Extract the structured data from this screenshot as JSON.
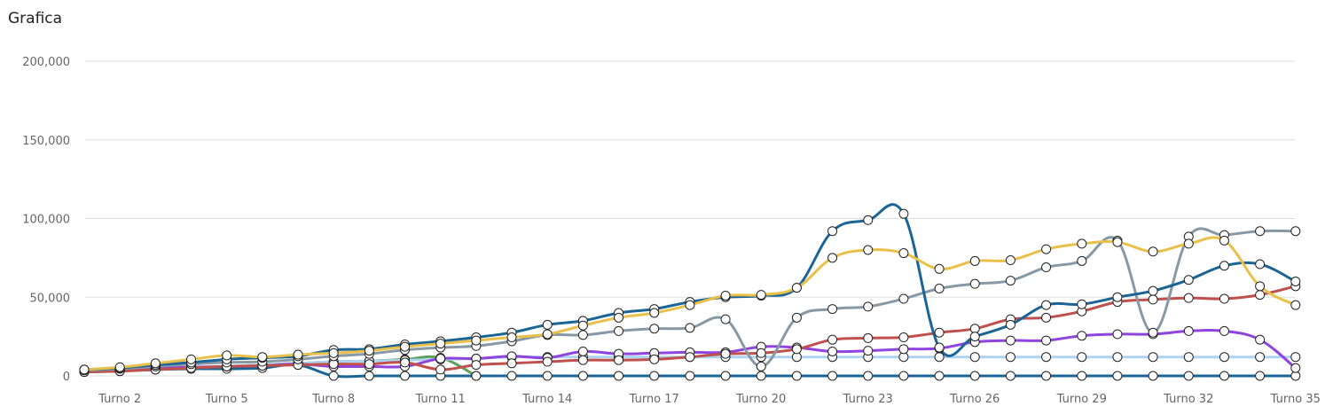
{
  "widget": {
    "title": "Grafica"
  },
  "colors": {
    "grid": "#dddddd",
    "axis_text": "#666666",
    "point_fill": "#ffffff",
    "point_stroke": "#222222"
  },
  "chart_data": {
    "type": "line",
    "title": "",
    "xlabel": "",
    "ylabel": "",
    "ylim": [
      0,
      200000
    ],
    "yticks": [
      "0",
      "50,000",
      "100,000",
      "150,000",
      "200,000"
    ],
    "ytick_values": [
      0,
      50000,
      100000,
      150000,
      200000
    ],
    "x": [
      1,
      2,
      3,
      4,
      5,
      6,
      7,
      8,
      9,
      10,
      11,
      12,
      13,
      14,
      15,
      16,
      17,
      18,
      19,
      20,
      21,
      22,
      23,
      24,
      25,
      26,
      27,
      28,
      29,
      30,
      31,
      32,
      33,
      34,
      35
    ],
    "xticks": [
      {
        "label": "Turno 2",
        "turn": 2
      },
      {
        "label": "Turno 5",
        "turn": 5
      },
      {
        "label": "Turno 8",
        "turn": 8
      },
      {
        "label": "Turno 11",
        "turn": 11
      },
      {
        "label": "Turno 14",
        "turn": 14
      },
      {
        "label": "Turno 17",
        "turn": 17
      },
      {
        "label": "Turno 20",
        "turn": 20
      },
      {
        "label": "Turno 23",
        "turn": 23
      },
      {
        "label": "Turno 26",
        "turn": 26
      },
      {
        "label": "Turno 29",
        "turn": 29
      },
      {
        "label": "Turno 32",
        "turn": 32
      },
      {
        "label": "Turno 35",
        "turn": 35
      }
    ],
    "grid": true,
    "legend": "none",
    "series": [
      {
        "color": "#e8c04a",
        "values": [
          4000,
          5500,
          8000,
          10500,
          13000,
          12000,
          13500,
          14500,
          16000,
          18500,
          20500,
          22500,
          24500,
          26500,
          32000,
          37000,
          40000,
          45000,
          51000,
          51500,
          56000,
          75000,
          80000,
          78000,
          68000,
          73000,
          73500,
          80500,
          84000,
          85000,
          79000,
          84000,
          86000,
          57000,
          45000
        ]
      },
      {
        "color": "#1a6496",
        "values": [
          4000,
          5000,
          7000,
          8500,
          10500,
          11500,
          12500,
          16500,
          17000,
          20000,
          22000,
          24500,
          27500,
          32500,
          35000,
          40000,
          42500,
          47000,
          50000,
          51000,
          56000,
          92000,
          99000,
          103000,
          18000,
          25000,
          32500,
          45000,
          45500,
          50000,
          54000,
          61000,
          70000,
          71000,
          60000
        ]
      },
      {
        "color": "#8899a6",
        "values": [
          3500,
          4500,
          6000,
          7500,
          8500,
          9000,
          10500,
          12500,
          14000,
          16500,
          18000,
          19000,
          22000,
          26000,
          26000,
          28500,
          30000,
          30500,
          36000,
          6000,
          37000,
          42500,
          44000,
          49000,
          55500,
          58500,
          60500,
          69000,
          73000,
          86000,
          27500,
          88500,
          89500,
          92000,
          92000
        ]
      },
      {
        "color": "#c0504d",
        "values": [
          2500,
          3000,
          4000,
          5000,
          6000,
          6500,
          7000,
          7500,
          7500,
          8500,
          4000,
          7000,
          8000,
          9000,
          10000,
          10000,
          10500,
          12000,
          14000,
          14500,
          17000,
          23000,
          24000,
          24500,
          27500,
          30000,
          36000,
          37000,
          41000,
          47000,
          48500,
          49500,
          49000,
          51500,
          57000
        ]
      },
      {
        "color": "#8e44dd",
        "values": [
          3000,
          4000,
          5000,
          5500,
          6000,
          6500,
          7500,
          6000,
          6000,
          6000,
          11000,
          11000,
          12500,
          11500,
          15500,
          14000,
          14500,
          15000,
          15000,
          18500,
          18000,
          15500,
          16000,
          17000,
          17500,
          21500,
          22500,
          22500,
          25500,
          26500,
          26500,
          28500,
          28500,
          23000,
          5000
        ]
      },
      {
        "color": "#aed3f0",
        "values": [
          3000,
          3500,
          5000,
          5500,
          6000,
          7000,
          8000,
          9000,
          9500,
          10000,
          10500,
          11000,
          12000,
          12000,
          12000,
          12000,
          12000,
          12000,
          12000,
          12000,
          12000,
          12000,
          12000,
          12000,
          12000,
          12000,
          12000,
          12000,
          12000,
          12000,
          12000,
          12000,
          12000,
          12000,
          12000
        ]
      },
      {
        "color": "#5ba05b",
        "values": [
          2500,
          3000,
          4000,
          5000,
          6000,
          7000,
          8000,
          9000,
          9500,
          10500,
          11500,
          0,
          null,
          null,
          null,
          null,
          null,
          null,
          null,
          null,
          null,
          null,
          null,
          null,
          null,
          null,
          null,
          null,
          null,
          null,
          null,
          null,
          null,
          null,
          null
        ]
      },
      {
        "color": "#1a6496",
        "values": [
          3000,
          3500,
          4000,
          4500,
          4500,
          5000,
          7000,
          0,
          0,
          0,
          0,
          0,
          0,
          0,
          0,
          0,
          0,
          0,
          0,
          0,
          0,
          0,
          0,
          0,
          0,
          0,
          0,
          0,
          0,
          0,
          0,
          0,
          0,
          0,
          0
        ]
      }
    ]
  }
}
